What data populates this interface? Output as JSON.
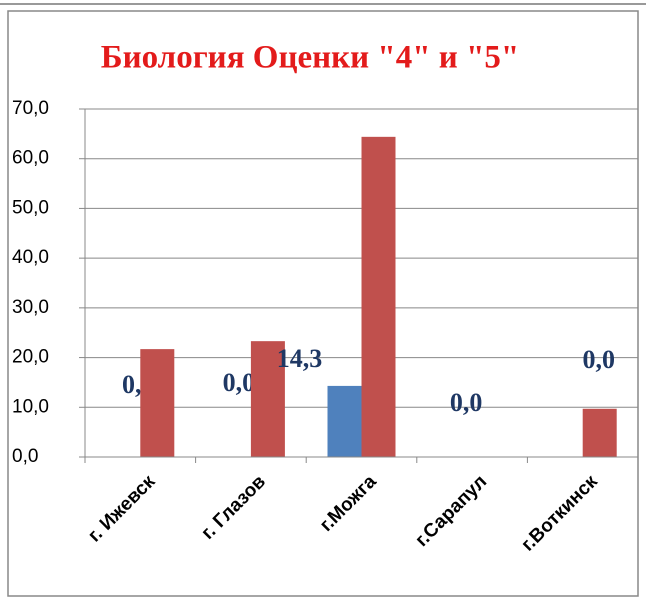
{
  "chart_data": {
    "type": "bar",
    "title": "Биология  Оценки \"4\" и \"5\"",
    "categories": [
      "г. Ижевск",
      "г. Глазов",
      "г.Можга",
      "г.Сарапул",
      "г.Воткинск"
    ],
    "series": [
      {
        "color": "#4f81bd",
        "values": [
          0,
          0,
          14.3,
          0,
          0
        ],
        "value_labels": [
          "0,0",
          "0,0",
          "14,3",
          "0,0",
          "0,0"
        ]
      },
      {
        "color": "#c0504d",
        "values": [
          21.7,
          23.3,
          64.4,
          0,
          9.7
        ]
      }
    ],
    "ylim": [
      0,
      70
    ],
    "yticks": [
      {
        "value": 0,
        "label": "0,0"
      },
      {
        "value": 10,
        "label": "10,0"
      },
      {
        "value": 20,
        "label": "20,0"
      },
      {
        "value": 30,
        "label": "30,0"
      },
      {
        "value": 40,
        "label": "40,0"
      },
      {
        "value": 50,
        "label": "50,0"
      },
      {
        "value": 60,
        "label": "60,0"
      },
      {
        "value": 70,
        "label": "70,0"
      }
    ],
    "grid": true
  }
}
